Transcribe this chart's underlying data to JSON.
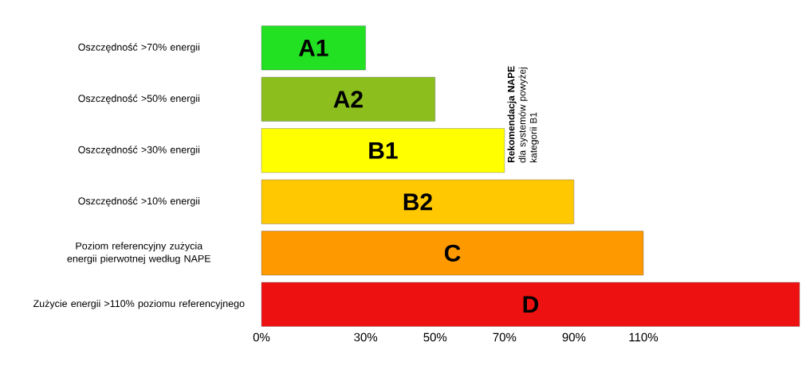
{
  "chart_data": {
    "type": "bar",
    "orientation": "horizontal",
    "categories": [
      "Oszczędność >70% energii",
      "Oszczędność >50% energii",
      "Oszczędność >30% energii",
      "Oszczędność >10% energii",
      "Poziom referencyjny zużycia energii pierwotnej według NAPE",
      "Zużycie energii >110% poziomu referencyjnego"
    ],
    "values": [
      30,
      50,
      70,
      90,
      110,
      155
    ],
    "value_labels": [
      "A1",
      "A2",
      "B1",
      "B2",
      "C",
      "D"
    ],
    "colors": [
      "#22e022",
      "#8cbf1e",
      "#ffff00",
      "#ffc800",
      "#ff9900",
      "#ee1111"
    ],
    "xlim": [
      0,
      155
    ],
    "xticks": [
      {
        "value": 0,
        "label": "0%"
      },
      {
        "value": 30,
        "label": "30%"
      },
      {
        "value": 50,
        "label": "50%"
      },
      {
        "value": 70,
        "label": "70%"
      },
      {
        "value": 90,
        "label": "90%"
      },
      {
        "value": 110,
        "label": "110%"
      }
    ],
    "annotations": [
      "**Rekomendacja NAPE** dla systemów powyżej kategorii B1"
    ],
    "grid": false
  }
}
